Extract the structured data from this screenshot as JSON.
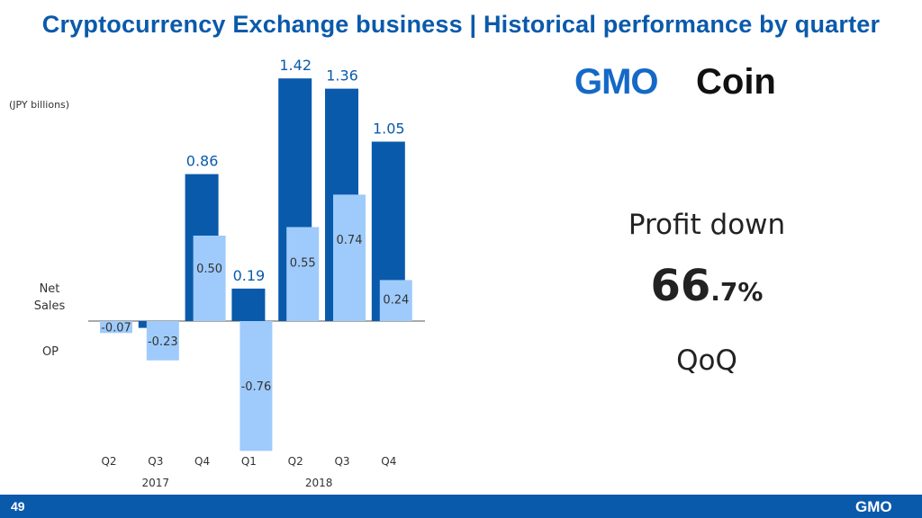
{
  "title": "Cryptocurrency Exchange business | Historical performance by quarter",
  "unit_label": "(JPY billions)",
  "logo": {
    "gmo": "GMO",
    "coin": "Coin"
  },
  "highlight": {
    "line1": "Profit down",
    "value_int": "66",
    "value_dec": ".7%",
    "line3": "QoQ"
  },
  "footer": {
    "page": "49",
    "logo": "GMO"
  },
  "colors": {
    "title": "#0a5aab",
    "net_sales": "#0a5aab",
    "op": "#9ecbfb",
    "footer": "#0a5aab",
    "logo_blue": "#1469c7"
  },
  "chart_data": {
    "type": "bar",
    "categories": [
      "Q2",
      "Q3",
      "Q4",
      "Q1",
      "Q2",
      "Q3",
      "Q4"
    ],
    "year_labels": [
      {
        "label": "2017",
        "span": [
          0,
          2
        ]
      },
      {
        "label": "2018",
        "span": [
          3,
          6
        ]
      }
    ],
    "series": [
      {
        "name": "Net Sales",
        "values": [
          0.0,
          -0.04,
          0.86,
          0.19,
          1.42,
          1.36,
          1.05
        ],
        "labels": [
          "",
          "",
          "0.86",
          "0.19",
          "1.42",
          "1.36",
          "1.05"
        ]
      },
      {
        "name": "OP",
        "values": [
          -0.07,
          -0.23,
          0.5,
          -0.76,
          0.55,
          0.74,
          0.24
        ],
        "labels": [
          "-0.07",
          "-0.23",
          "0.50",
          "-0.76",
          "0.55",
          "0.74",
          "0.24"
        ]
      }
    ],
    "legend": [
      "Net Sales",
      "OP"
    ],
    "ylim": [
      -0.8,
      1.5
    ],
    "grid": false
  }
}
